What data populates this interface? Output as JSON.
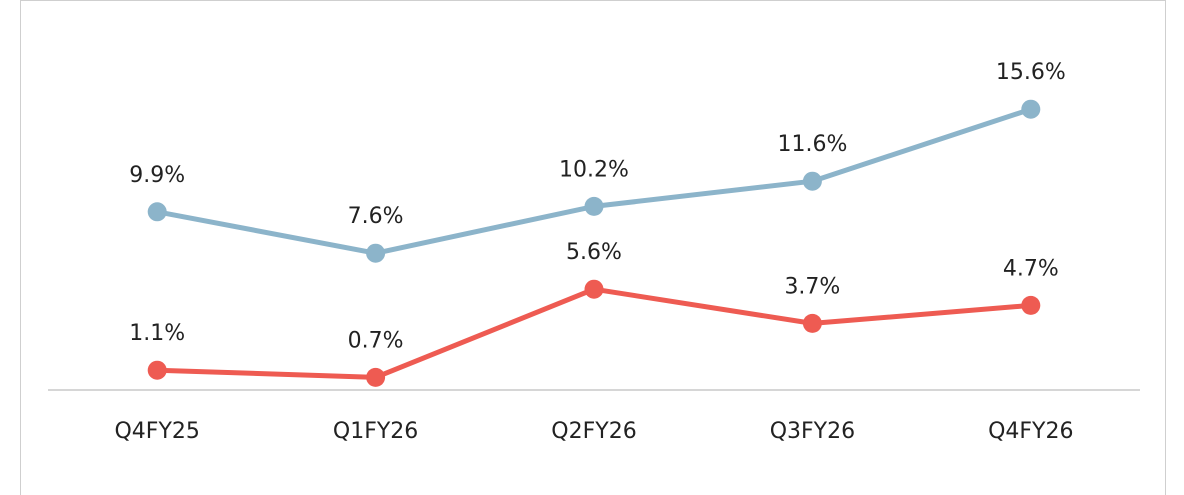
{
  "chart_data": {
    "type": "line",
    "categories": [
      "Q4FY25",
      "Q1FY26",
      "Q2FY26",
      "Q3FY26",
      "Q4FY26"
    ],
    "series": [
      {
        "color": "#8cb4ca",
        "values": [
          9.9,
          7.6,
          10.2,
          11.6,
          15.6
        ],
        "value_labels": [
          "9.9%",
          "7.6%",
          "10.2%",
          "11.6%",
          "15.6%"
        ]
      },
      {
        "color": "#ee5b52",
        "values": [
          1.1,
          0.7,
          5.6,
          3.7,
          4.7
        ],
        "value_labels": [
          "1.1%",
          "0.7%",
          "5.6%",
          "3.7%",
          "4.7%"
        ]
      }
    ],
    "ylim": [
      0,
      18
    ]
  }
}
